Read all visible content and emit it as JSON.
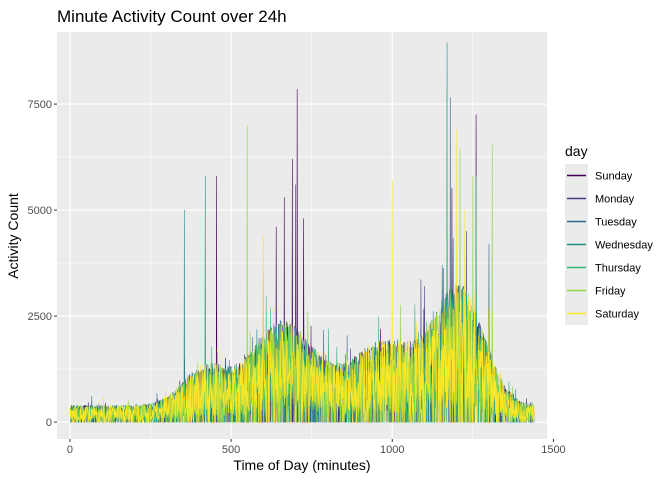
{
  "chart_data": {
    "type": "line",
    "title": "Minute Activity Count over 24h",
    "xlabel": "Time of Day (minutes)",
    "ylabel": "Activity Count",
    "xlim": [
      -40,
      1480
    ],
    "ylim": [
      -400,
      9200
    ],
    "x_ticks": [
      0,
      500,
      1000,
      1500
    ],
    "x_tick_labels": [
      "0",
      "500",
      "1000",
      "1500"
    ],
    "y_ticks": [
      0,
      2500,
      5000,
      7500
    ],
    "y_tick_labels": [
      "0",
      "2500",
      "5000",
      "7500"
    ],
    "grid": true,
    "legend": {
      "title": "day",
      "position": "right"
    },
    "background": "#EBEBEB",
    "x_range_minutes": [
      1,
      1440
    ],
    "series": [
      {
        "name": "Sunday",
        "color": "#440154",
        "peaks": [
          [
            455,
            5800
          ],
          [
            640,
            4600
          ],
          [
            665,
            5300
          ],
          [
            690,
            6200
          ],
          [
            705,
            7850
          ],
          [
            725,
            4800
          ],
          [
            1260,
            7250
          ]
        ]
      },
      {
        "name": "Monday",
        "color": "#443A83",
        "peaks": [
          [
            600,
            3500
          ],
          [
            700,
            5600
          ],
          [
            1100,
            3200
          ],
          [
            1230,
            4500
          ]
        ]
      },
      {
        "name": "Tuesday",
        "color": "#31688E",
        "peaks": [
          [
            1180,
            7650
          ],
          [
            1300,
            4200
          ]
        ]
      },
      {
        "name": "Wednesday",
        "color": "#21908C",
        "peaks": [
          [
            355,
            5000
          ],
          [
            420,
            5800
          ],
          [
            1155,
            3700
          ],
          [
            1170,
            8950
          ]
        ]
      },
      {
        "name": "Thursday",
        "color": "#35B779",
        "peaks": [
          [
            420,
            4900
          ],
          [
            1170,
            7850
          ],
          [
            1260,
            5800
          ]
        ]
      },
      {
        "name": "Friday",
        "color": "#8FD744",
        "peaks": [
          [
            550,
            7000
          ],
          [
            1210,
            6450
          ],
          [
            1250,
            5800
          ],
          [
            1310,
            6550
          ]
        ]
      },
      {
        "name": "Saturday",
        "color": "#FDE725",
        "peaks": [
          [
            600,
            4400
          ],
          [
            1000,
            5700
          ],
          [
            1200,
            6900
          ],
          [
            1225,
            5000
          ]
        ]
      }
    ]
  }
}
